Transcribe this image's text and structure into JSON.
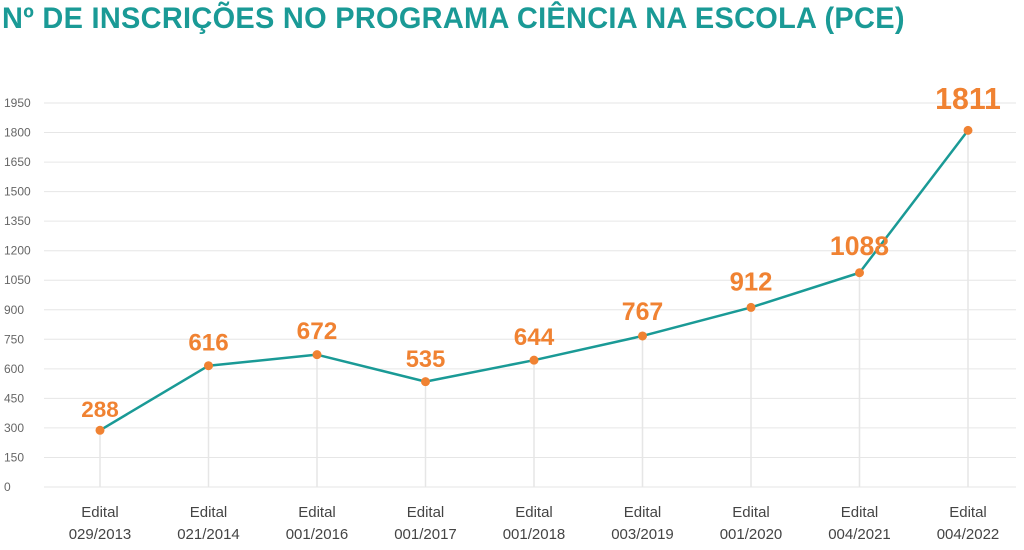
{
  "colors": {
    "title": "#1a9a96",
    "line": "#1a9a96",
    "marker": "#f08232",
    "data_label": "#f08232",
    "grid": "#e6e6e6",
    "axis_text": "#444444",
    "tick_text": "#666666"
  },
  "chart_data": {
    "type": "line",
    "title": "Nº DE INSCRIÇÕES NO PROGRAMA CIÊNCIA NA ESCOLA (PCE)",
    "xlabel": "",
    "ylabel": "",
    "ylim": [
      0,
      1950
    ],
    "y_ticks": [
      0,
      150,
      300,
      450,
      600,
      750,
      900,
      1050,
      1200,
      1350,
      1500,
      1650,
      1800,
      1950
    ],
    "grid": true,
    "legend": "none",
    "categories": [
      [
        "Edital",
        "029/2013"
      ],
      [
        "Edital",
        "021/2014"
      ],
      [
        "Edital",
        "001/2016"
      ],
      [
        "Edital",
        "001/2017"
      ],
      [
        "Edital",
        "001/2018"
      ],
      [
        "Edital",
        "003/2019"
      ],
      [
        "Edital",
        "001/2020"
      ],
      [
        "Edital",
        "004/2021"
      ],
      [
        "Edital",
        "004/2022"
      ]
    ],
    "series": [
      {
        "values": [
          288,
          616,
          672,
          535,
          644,
          767,
          912,
          1088,
          1811
        ],
        "labels": [
          "288",
          "616",
          "672",
          "535",
          "644",
          "767",
          "912",
          "1088",
          "1811"
        ]
      }
    ]
  }
}
